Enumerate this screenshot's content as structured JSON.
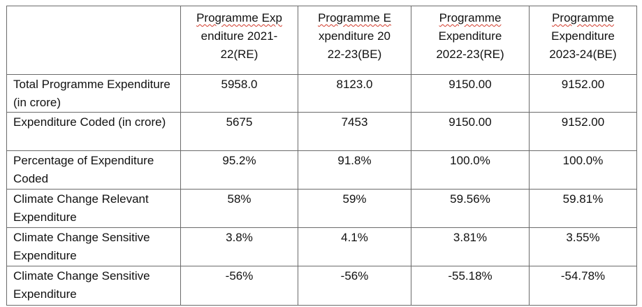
{
  "table": {
    "corner": "",
    "columns": [
      {
        "lines": [
          "Programme Exp",
          "enditure 2021-",
          "22(RE)"
        ]
      },
      {
        "lines": [
          "Programme E",
          "xpenditure 20",
          "22-23(BE)"
        ]
      },
      {
        "lines": [
          "Programme",
          "Expenditure",
          "2022-23(RE)"
        ]
      },
      {
        "lines": [
          "Programme",
          "Expenditure",
          "2023-24(BE)"
        ]
      }
    ],
    "rows": [
      {
        "label": "Total Programme Expenditure (in crore)",
        "values": [
          "5958.0",
          "8123.0",
          "9150.00",
          "9152.00"
        ]
      },
      {
        "label": "Expenditure Coded (in crore)",
        "values": [
          "5675",
          "7453",
          "9150.00",
          "9152.00"
        ]
      },
      {
        "label": "Percentage of Expenditure Coded",
        "values": [
          "95.2%",
          "91.8%",
          "100.0%",
          "100.0%"
        ]
      },
      {
        "label": "Climate Change Relevant Expenditure",
        "values": [
          "58%",
          "59%",
          "59.56%",
          "59.81%"
        ]
      },
      {
        "label": "Climate Change Sensitive Expenditure",
        "values": [
          "3.8%",
          "4.1%",
          "3.81%",
          "3.55%"
        ]
      },
      {
        "label": "Climate Change Sensitive Expenditure",
        "values": [
          "-56%",
          "-56%",
          "-55.18%",
          "-54.78%"
        ]
      }
    ]
  }
}
